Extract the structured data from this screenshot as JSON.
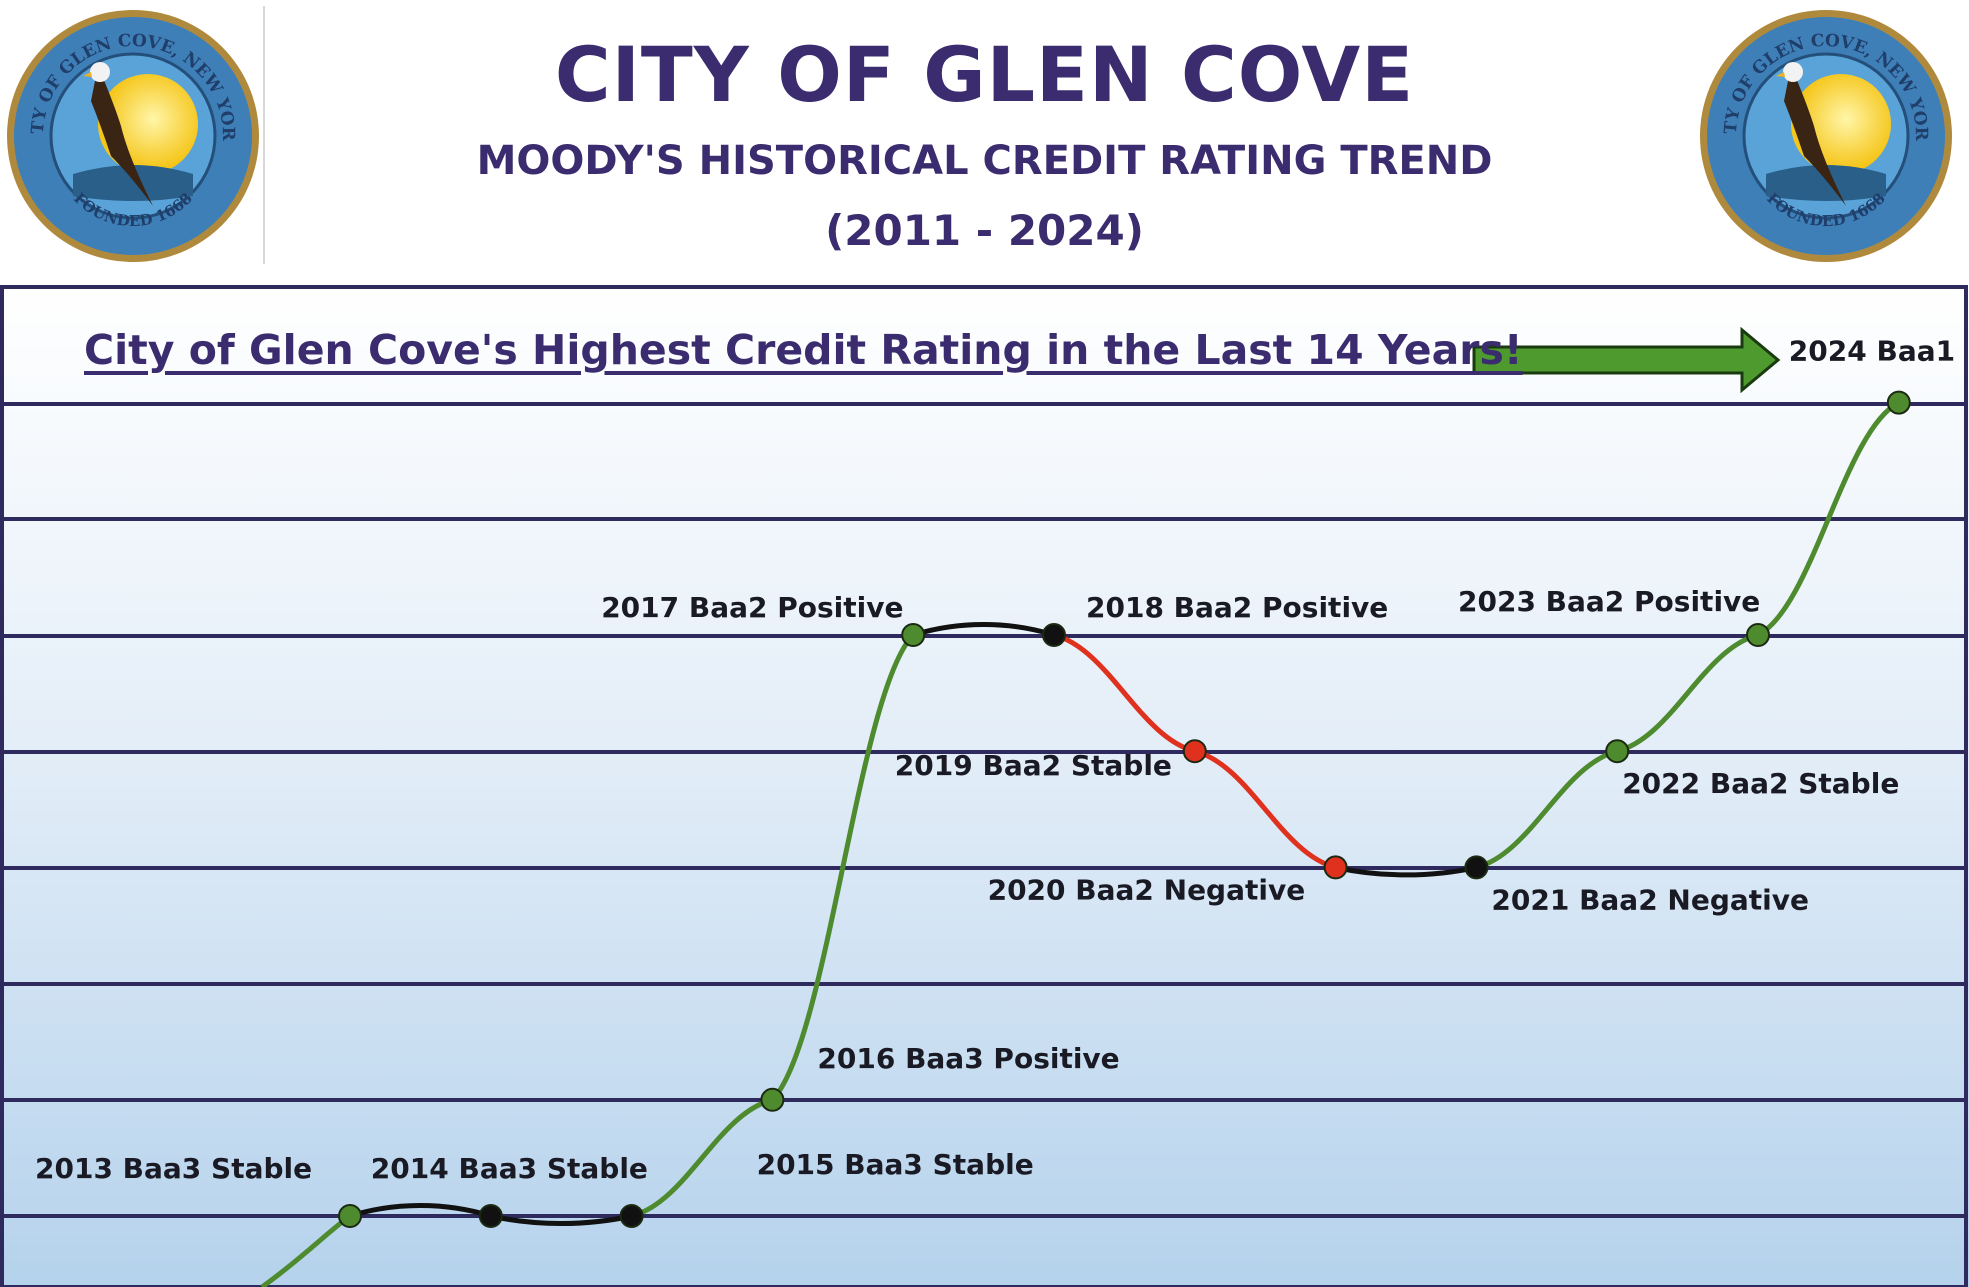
{
  "header": {
    "title": "CITY OF GLEN COVE",
    "subtitle": "MOODY'S HISTORICAL CREDIT RATING TREND",
    "years": "(2011 - 2024)",
    "seal_text_top": "CITY OF GLEN COVE, NEW YORK",
    "seal_text_bottom": "FOUNDED 1668"
  },
  "headline": "City of Glen Cove's Highest Credit Rating in the Last 14 Years!",
  "colors": {
    "title": "#3a2c6e",
    "up_segment": "#4e8a2e",
    "down_segment": "#e0301e",
    "flat_segment": "#111111",
    "gridline": "#2e2a5e",
    "arrow": "#4e9a2e"
  },
  "chart_data": {
    "type": "line",
    "x": [
      2013,
      2014,
      2015,
      2016,
      2017,
      2018,
      2019,
      2020,
      2021,
      2022,
      2023,
      2024
    ],
    "y_rank": [
      2,
      2,
      2,
      3,
      7,
      7,
      6,
      5,
      5,
      6,
      7,
      9
    ],
    "labels": [
      "2013  Baa3 Stable",
      "2014  Baa3 Stable",
      "2015  Baa3 Stable",
      "2016  Baa3 Positive",
      "2017  Baa2 Positive",
      "2018  Baa2 Positive",
      "2019  Baa2 Stable",
      "2020  Baa2 Negative",
      "2021  Baa2 Negative",
      "2022  Baa2 Stable",
      "2023  Baa2 Positive",
      "2024  Baa1"
    ],
    "point_colors": [
      "green",
      "black",
      "black",
      "green",
      "green",
      "black",
      "red",
      "red",
      "black",
      "green",
      "green",
      "green"
    ],
    "grid": true,
    "legend": "none"
  }
}
